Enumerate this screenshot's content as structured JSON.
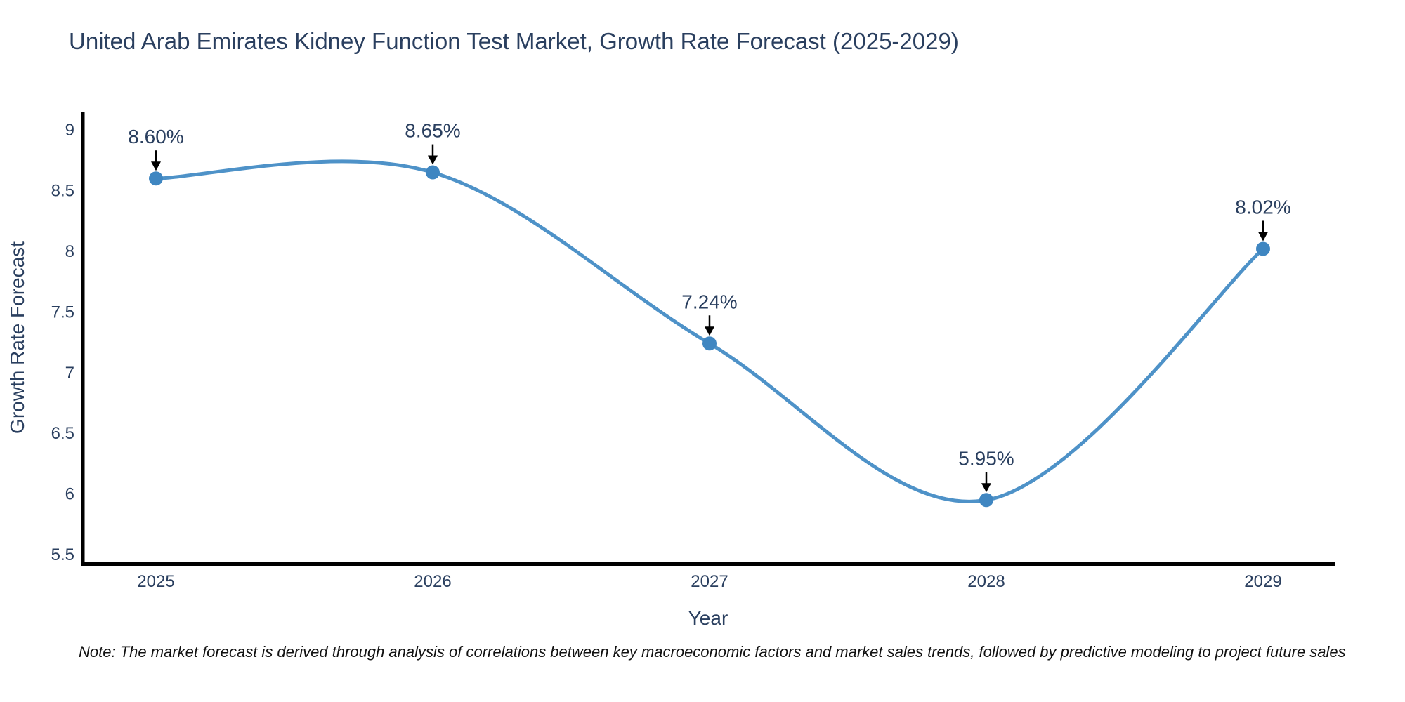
{
  "header": {
    "title": "United Arab Emirates Kidney Function Test Market, Growth Rate Forecast (2025-2029)"
  },
  "chart_data": {
    "type": "line",
    "title": "United Arab Emirates Kidney Function Test Market, Growth Rate Forecast (2025-2029)",
    "xlabel": "Year",
    "ylabel": "Growth Rate Forecast",
    "categories": [
      "2025",
      "2026",
      "2027",
      "2028",
      "2029"
    ],
    "series": [
      {
        "name": "Growth Rate Forecast",
        "values": [
          8.6,
          8.65,
          7.24,
          5.95,
          8.02
        ]
      }
    ],
    "point_labels": [
      "8.60%",
      "8.65%",
      "7.24%",
      "5.95%",
      "8.02%"
    ],
    "y_ticks": [
      5.5,
      6,
      6.5,
      7,
      7.5,
      8,
      8.5,
      9
    ],
    "ylim": [
      5.425,
      9.145
    ],
    "grid": false,
    "legend": "none",
    "curve": "spline",
    "line_color": "#4e92c8",
    "marker_color": "#3f86c1",
    "axis_line_color": "#000000",
    "annotation_arrow_color": "#000000",
    "text_color": "#2a3f5f"
  },
  "footer": {
    "note": "Note: The market forecast is derived through analysis of correlations between key macroeconomic factors and market sales trends, followed by predictive modeling to project future sales"
  }
}
